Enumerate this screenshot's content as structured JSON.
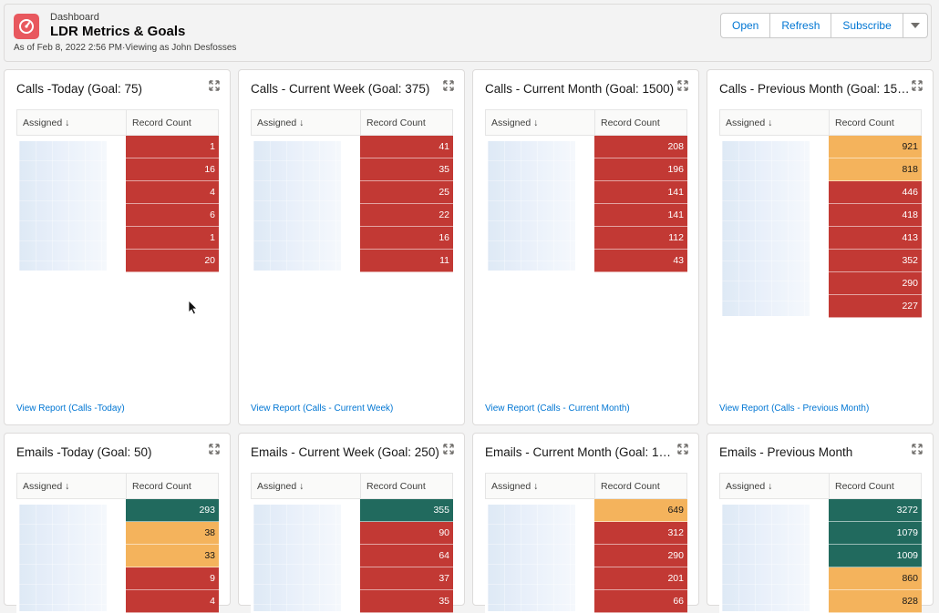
{
  "header": {
    "eyebrow": "Dashboard",
    "title": "LDR Metrics & Goals",
    "subtitle": "As of Feb 8, 2022 2:56 PM·Viewing as John Desfosses",
    "icon": "dashboard-gauge-icon",
    "accent": "#e8585e"
  },
  "actions": {
    "open": "Open",
    "refresh": "Refresh",
    "subscribe": "Subscribe"
  },
  "colors": {
    "red": "#c23934",
    "orange": "#f4b35c",
    "green": "#216a5e",
    "link": "#0176d3"
  },
  "table_headers": {
    "assigned": "Assigned ↓",
    "record_count": "Record Count"
  },
  "cards": [
    {
      "title": "Calls -Today (Goal: 75)",
      "link": "View Report (Calls -Today)",
      "rows": [
        {
          "value": "1",
          "color": "red"
        },
        {
          "value": "16",
          "color": "red"
        },
        {
          "value": "4",
          "color": "red"
        },
        {
          "value": "6",
          "color": "red"
        },
        {
          "value": "1",
          "color": "red"
        },
        {
          "value": "20",
          "color": "red"
        }
      ]
    },
    {
      "title": "Calls - Current Week (Goal: 375)",
      "link": "View Report (Calls - Current Week)",
      "rows": [
        {
          "value": "41",
          "color": "red"
        },
        {
          "value": "35",
          "color": "red"
        },
        {
          "value": "25",
          "color": "red"
        },
        {
          "value": "22",
          "color": "red"
        },
        {
          "value": "16",
          "color": "red"
        },
        {
          "value": "11",
          "color": "red"
        }
      ]
    },
    {
      "title": "Calls - Current Month (Goal: 1500)",
      "link": "View Report (Calls - Current Month)",
      "rows": [
        {
          "value": "208",
          "color": "red"
        },
        {
          "value": "196",
          "color": "red"
        },
        {
          "value": "141",
          "color": "red"
        },
        {
          "value": "141",
          "color": "red"
        },
        {
          "value": "112",
          "color": "red"
        },
        {
          "value": "43",
          "color": "red"
        }
      ]
    },
    {
      "title": "Calls - Previous Month (Goal: 15…",
      "link": "View Report (Calls - Previous Month)",
      "rows": [
        {
          "value": "921",
          "color": "orange"
        },
        {
          "value": "818",
          "color": "orange"
        },
        {
          "value": "446",
          "color": "red"
        },
        {
          "value": "418",
          "color": "red"
        },
        {
          "value": "413",
          "color": "red"
        },
        {
          "value": "352",
          "color": "red"
        },
        {
          "value": "290",
          "color": "red"
        },
        {
          "value": "227",
          "color": "red"
        }
      ]
    },
    {
      "title": "Emails -Today (Goal: 50)",
      "link": "",
      "rows": [
        {
          "value": "293",
          "color": "green"
        },
        {
          "value": "38",
          "color": "orange"
        },
        {
          "value": "33",
          "color": "orange"
        },
        {
          "value": "9",
          "color": "red"
        },
        {
          "value": "4",
          "color": "red"
        }
      ]
    },
    {
      "title": "Emails - Current Week (Goal: 250)",
      "link": "",
      "rows": [
        {
          "value": "355",
          "color": "green"
        },
        {
          "value": "90",
          "color": "red"
        },
        {
          "value": "64",
          "color": "red"
        },
        {
          "value": "37",
          "color": "red"
        },
        {
          "value": "35",
          "color": "red"
        }
      ]
    },
    {
      "title": "Emails - Current Month (Goal: 1…",
      "link": "",
      "rows": [
        {
          "value": "649",
          "color": "orange"
        },
        {
          "value": "312",
          "color": "red"
        },
        {
          "value": "290",
          "color": "red"
        },
        {
          "value": "201",
          "color": "red"
        },
        {
          "value": "66",
          "color": "red"
        }
      ]
    },
    {
      "title": "Emails - Previous Month",
      "link": "",
      "rows": [
        {
          "value": "3272",
          "color": "green"
        },
        {
          "value": "1079",
          "color": "green"
        },
        {
          "value": "1009",
          "color": "green"
        },
        {
          "value": "860",
          "color": "orange"
        },
        {
          "value": "828",
          "color": "orange"
        }
      ]
    }
  ]
}
